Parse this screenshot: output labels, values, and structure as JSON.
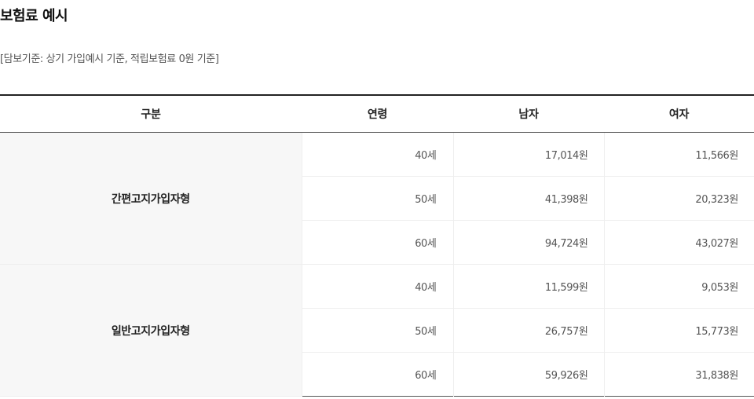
{
  "page": {
    "title": "보험료 예시",
    "note": "[담보기준: 상기 가입예시 기준, 적립보험료 0원 기준]"
  },
  "table": {
    "headers": {
      "category": "구분",
      "age": "연령",
      "male": "남자",
      "female": "여자"
    },
    "groups": [
      {
        "name": "간편고지가입자형",
        "rows": [
          {
            "age": "40세",
            "male": "17,014원",
            "female": "11,566원"
          },
          {
            "age": "50세",
            "male": "41,398원",
            "female": "20,323원"
          },
          {
            "age": "60세",
            "male": "94,724원",
            "female": "43,027원"
          }
        ]
      },
      {
        "name": "일반고지가입자형",
        "rows": [
          {
            "age": "40세",
            "male": "11,599원",
            "female": "9,053원"
          },
          {
            "age": "50세",
            "male": "26,757원",
            "female": "15,773원"
          },
          {
            "age": "60세",
            "male": "59,926원",
            "female": "31,838원"
          }
        ]
      }
    ]
  }
}
